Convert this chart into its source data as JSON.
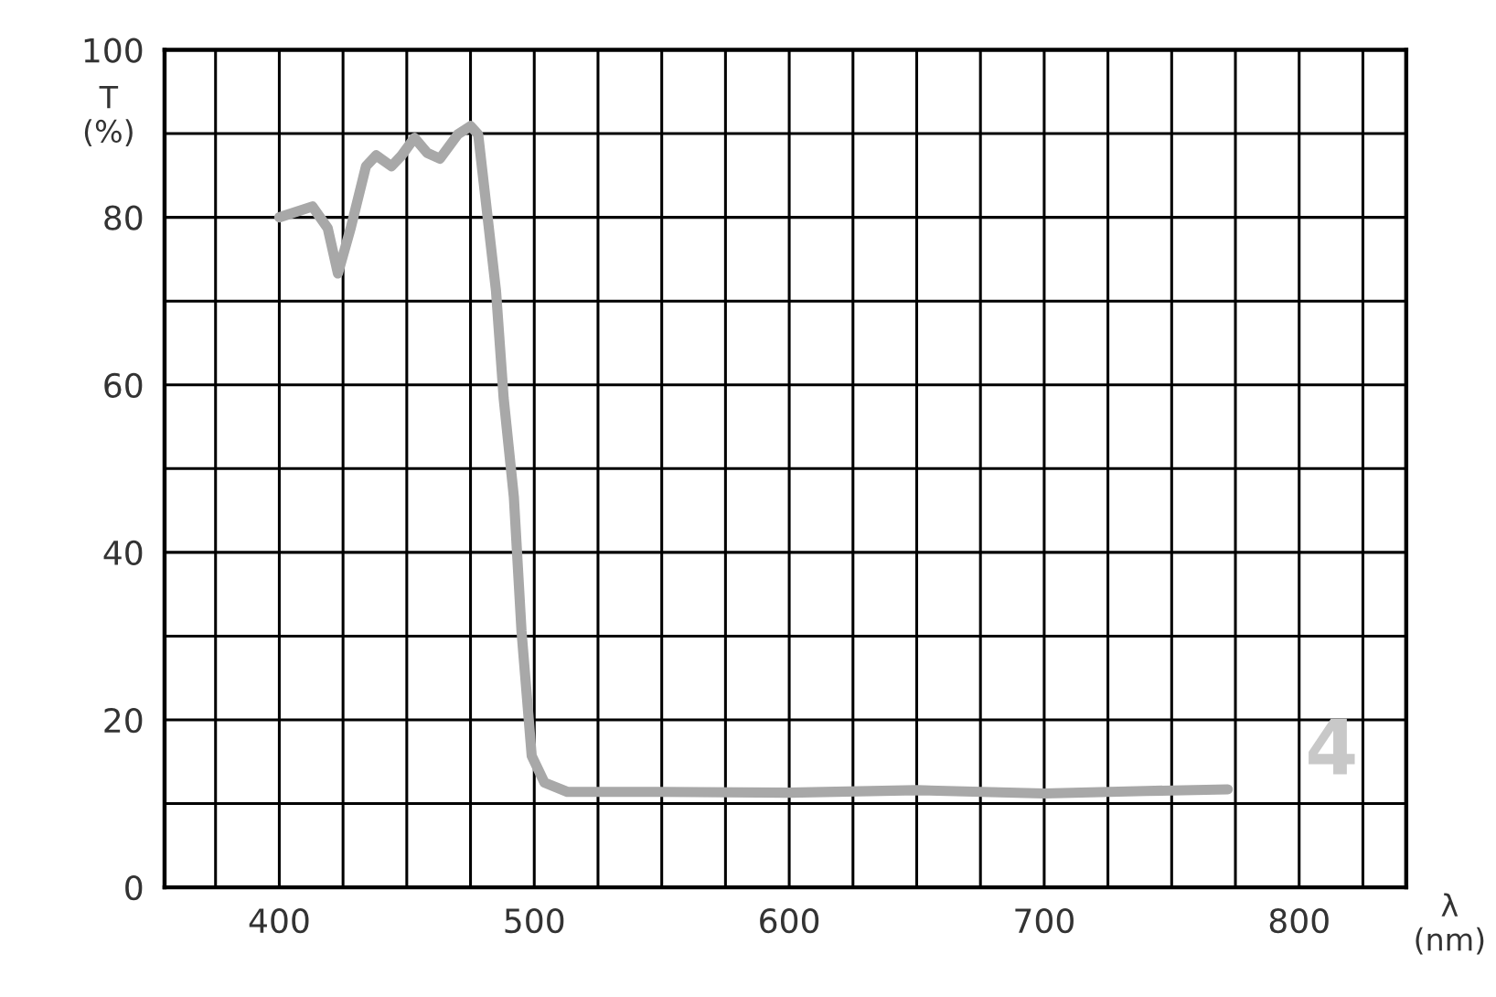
{
  "chart_data": {
    "type": "line",
    "ylabel": "T\n(%)",
    "xlabel": "λ\n(nm)",
    "annotations": [
      "4"
    ],
    "x": [
      400,
      413,
      419,
      423,
      428,
      434,
      438,
      444,
      448,
      453,
      458,
      463,
      470,
      475,
      478,
      481,
      485,
      488,
      492,
      495,
      499,
      504,
      513,
      550,
      600,
      650,
      700,
      740,
      772
    ],
    "series": [
      {
        "color": "#a8a8a8",
        "values": [
          80,
          81.3,
          78.7,
          73.3,
          78.7,
          86.1,
          87.4,
          86.1,
          87.4,
          89.5,
          87.7,
          87,
          89.9,
          90.9,
          89.9,
          81.9,
          71.2,
          58.4,
          46.6,
          30.6,
          15.7,
          12.5,
          11.4,
          11.4,
          11.3,
          11.6,
          11.2,
          11.5,
          11.7
        ]
      }
    ],
    "xlim": [
      355,
      842
    ],
    "ylim": [
      0,
      100
    ],
    "xticks": [
      {
        "value": 375,
        "label": null
      },
      400,
      {
        "value": 425,
        "label": null
      },
      {
        "value": 450,
        "label": null
      },
      {
        "value": 475,
        "label": null
      },
      500,
      {
        "value": 525,
        "label": null
      },
      {
        "value": 550,
        "label": null
      },
      {
        "value": 575,
        "label": null
      },
      600,
      {
        "value": 625,
        "label": null
      },
      {
        "value": 650,
        "label": null
      },
      {
        "value": 675,
        "label": null
      },
      700,
      {
        "value": 725,
        "label": null
      },
      {
        "value": 750,
        "label": null
      },
      {
        "value": 775,
        "label": null
      },
      800,
      {
        "value": 825,
        "label": null
      }
    ],
    "yticks": [
      0,
      {
        "value": 10,
        "label": null
      },
      20,
      {
        "value": 30,
        "label": null
      },
      40,
      {
        "value": 50,
        "label": null
      },
      60,
      {
        "value": 70,
        "label": null
      },
      80,
      {
        "value": 90,
        "label": null
      },
      100
    ],
    "grid": true,
    "marker": "none",
    "line_style": "solid"
  }
}
